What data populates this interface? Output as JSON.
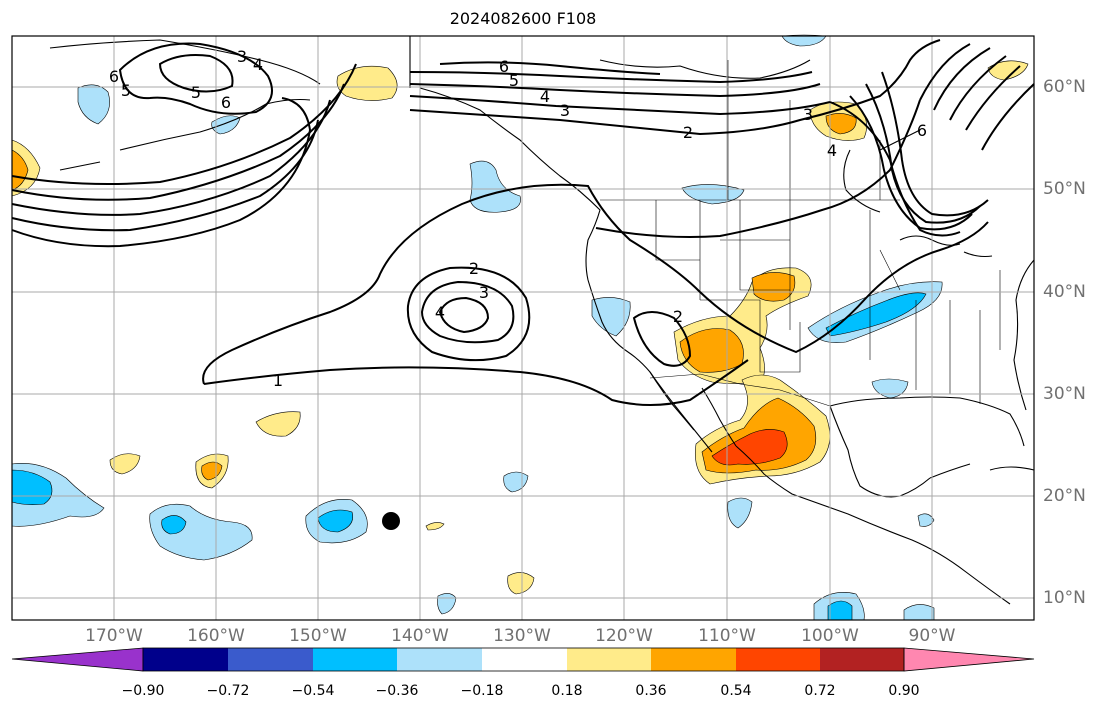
{
  "title": "2024082600 F108",
  "map": {
    "lon_labels": [
      "170°W",
      "160°W",
      "150°W",
      "140°W",
      "130°W",
      "120°W",
      "110°W",
      "100°W",
      "90°W"
    ],
    "lat_labels": [
      "60°N",
      "50°N",
      "40°N",
      "30°N",
      "20°N",
      "10°N"
    ],
    "contour_labels": [
      "1",
      "2",
      "3",
      "4",
      "5",
      "6",
      "2",
      "3",
      "4",
      "5",
      "6",
      "3",
      "4",
      "5",
      "6",
      "2",
      "3",
      "4",
      "6"
    ],
    "marker": "storm-position-dot"
  },
  "colorbar": {
    "ticks": [
      "−0.90",
      "−0.72",
      "−0.54",
      "−0.36",
      "−0.18",
      "0.18",
      "0.36",
      "0.54",
      "0.72",
      "0.90"
    ],
    "colors": [
      "#9932cc",
      "#00008b",
      "#3a5bcc",
      "#00bfff",
      "#ade1fa",
      "#ffffff",
      "#ffeb8a",
      "#ffa500",
      "#ff4500",
      "#b22222",
      "#ff87b0"
    ]
  },
  "colors": {
    "light_blue": "#ade1fa",
    "deep_sky_blue": "#00bfff",
    "yellow": "#ffeb8a",
    "orange": "#ffa500",
    "red_orange": "#ff4500",
    "grid": "#a9a9a9",
    "axis_label": "#707070"
  }
}
